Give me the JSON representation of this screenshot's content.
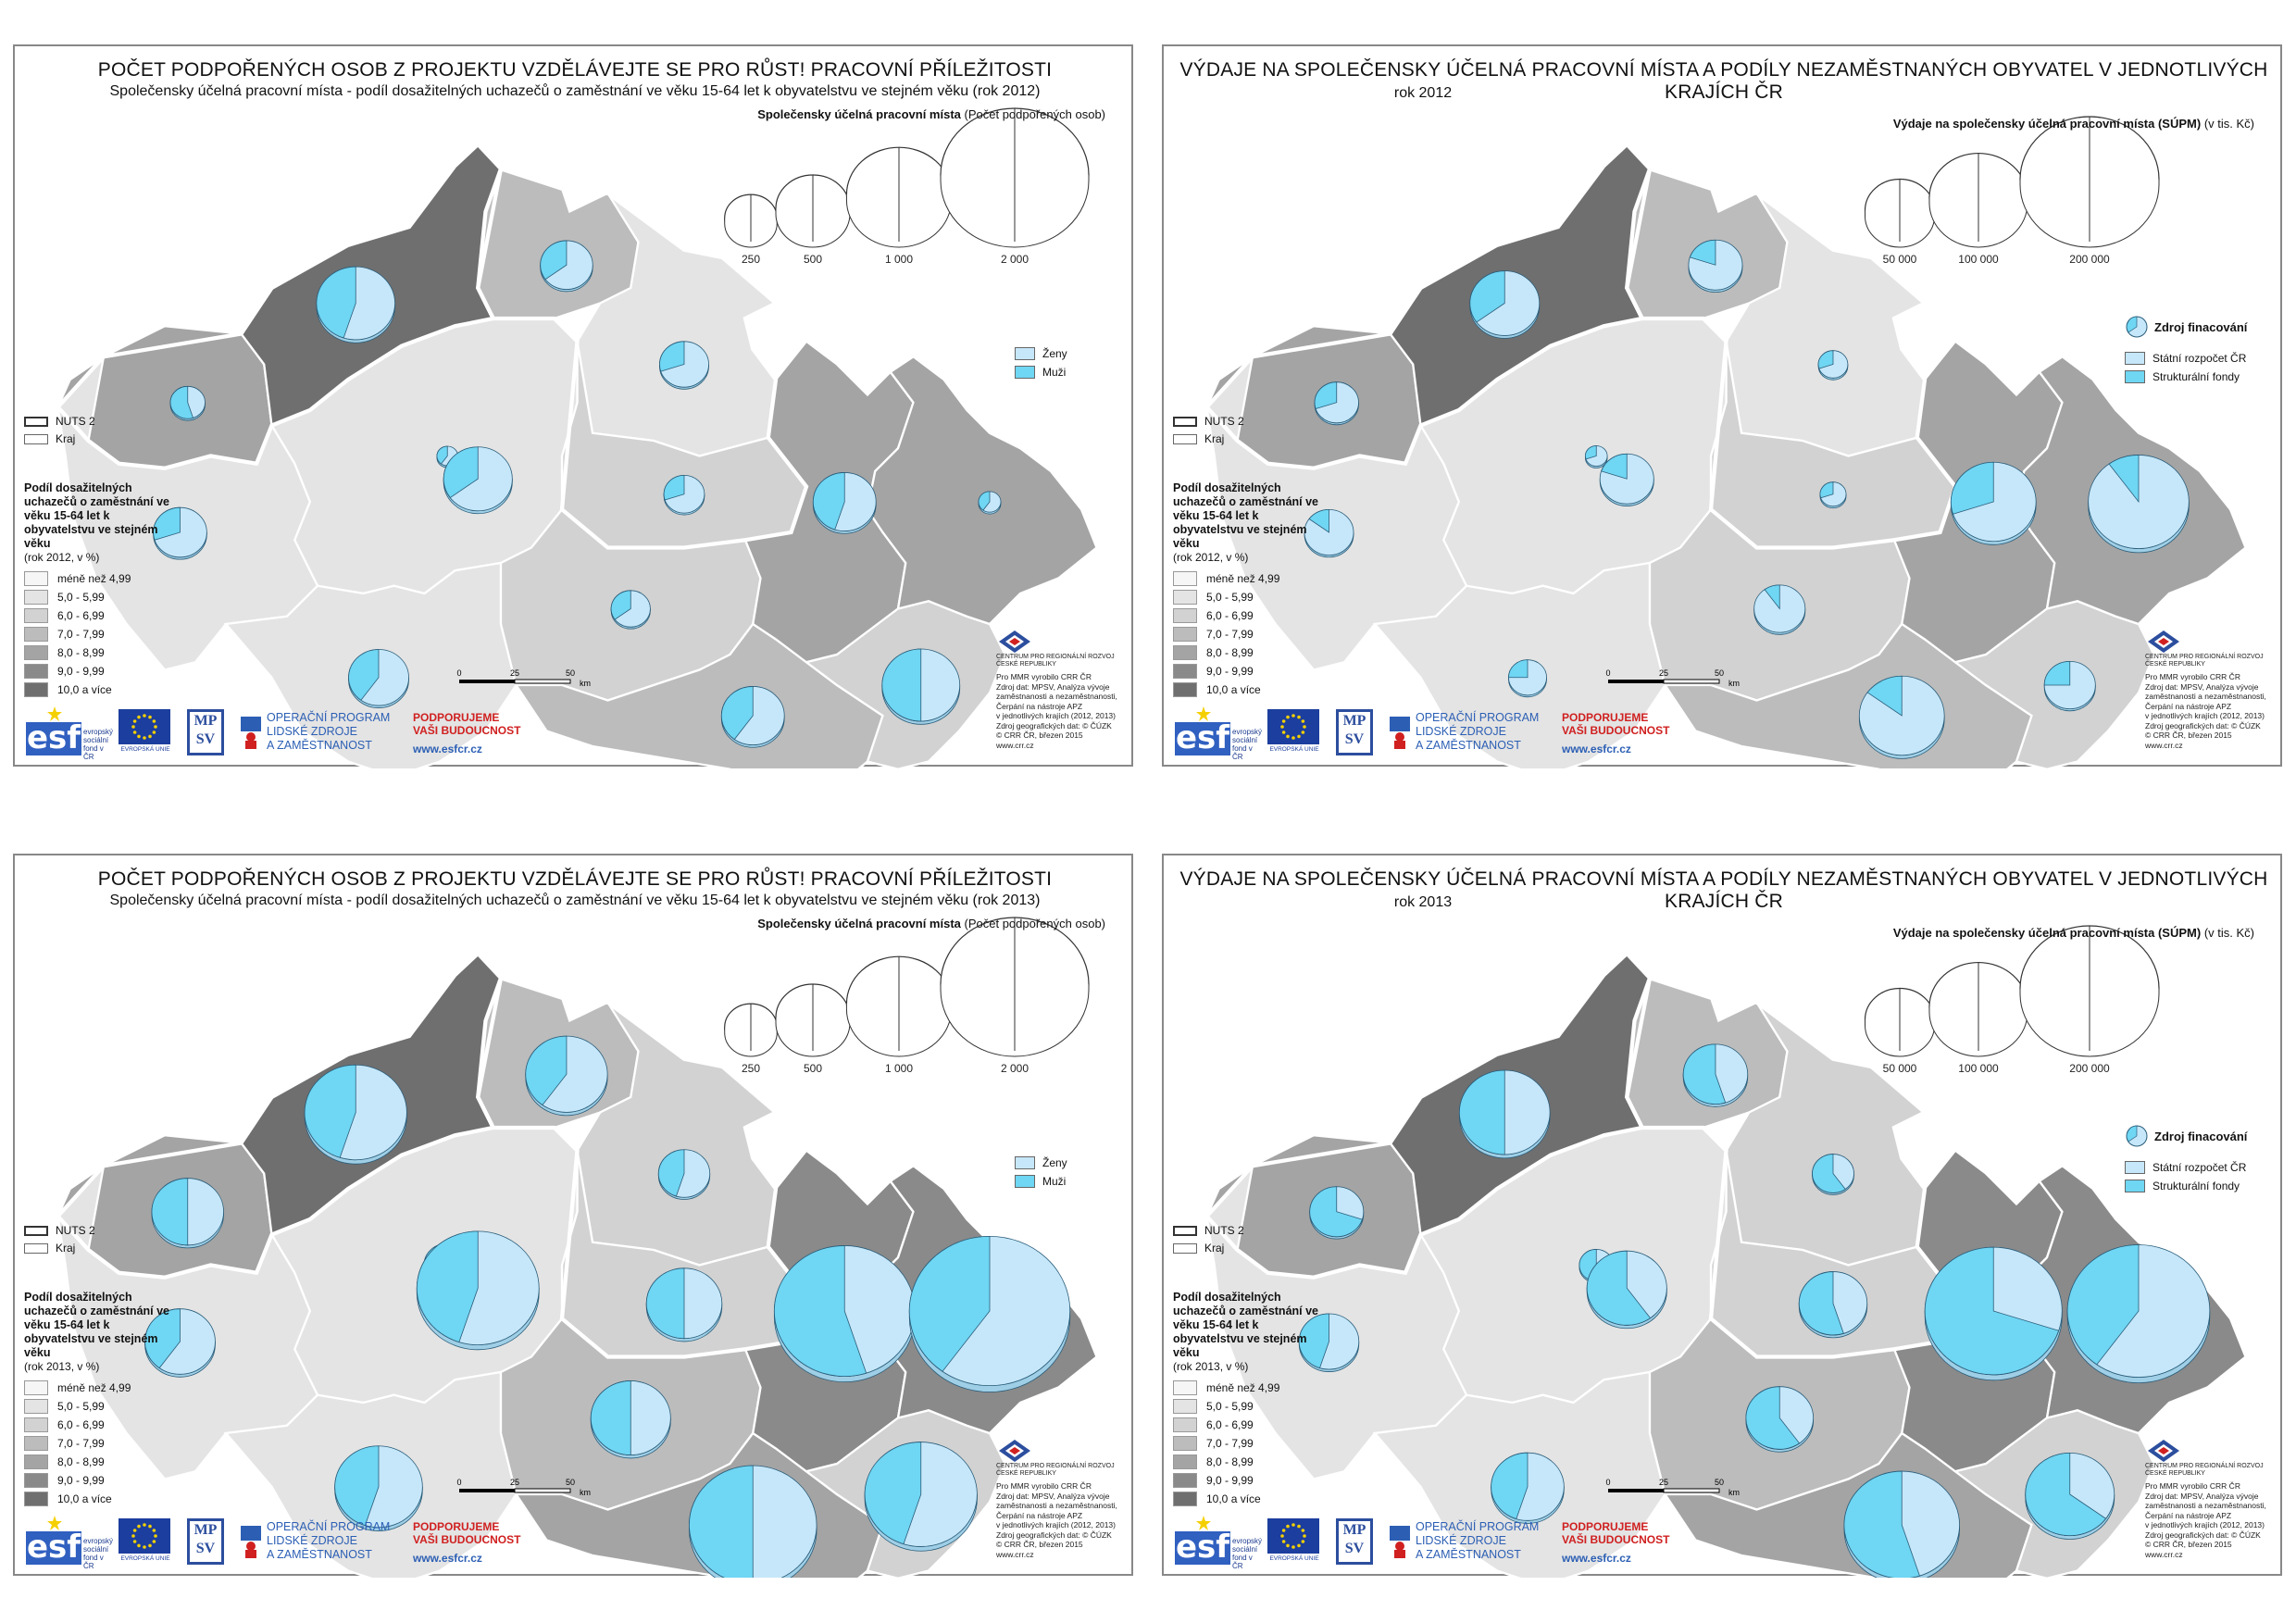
{
  "common": {
    "nuts_labels": [
      "NUTS 2",
      "Kraj"
    ],
    "choro_classes": [
      "méně než 4,99",
      "5,0 - 5,99",
      "6,0 - 6,99",
      "7,0 - 7,99",
      "8,0 - 8,99",
      "9,0 - 9,99",
      "10,0 a více"
    ],
    "choro_colors": [
      "#f6f6f6",
      "#e4e4e4",
      "#d2d2d2",
      "#bcbcbc",
      "#a4a4a4",
      "#8a8a8a",
      "#6f6f6f"
    ],
    "choro_title": "Podíl dosažitelných uchazečů o zaměstnání ve věku 15-64 let k obyvatelstvu ve stejném věku",
    "scale_ticks": [
      "0",
      "25",
      "50"
    ],
    "scale_unit": "km",
    "credits": {
      "crr_name": "CENTRUM PRO REGIONÁLNÍ ROZVOJ ČESKÉ REPUBLIKY",
      "lines": [
        "Pro MMR vyrobilo CRR ČR",
        "Zdroj dat: MPSV, Analýza vývoje",
        "zaměstnanosti a nezaměstnanosti,",
        "Čerpání na nástroje APZ",
        "v jednotlivých krajích (2012, 2013)",
        "Zdroj geografických dat: © ČÚZK",
        "© CRR ČR, březen 2015",
        "www.crr.cz"
      ]
    },
    "logos": {
      "esf_word": "esf",
      "esf_text": [
        "evropský",
        "sociální",
        "fond v ČR"
      ],
      "eu_text": "EVROPSKÁ UNIE",
      "mpsv": [
        "MP",
        "SV"
      ],
      "oppl": [
        "OPERAČNÍ PROGRAM",
        "LIDSKÉ ZDROJE",
        "A ZAMĚSTNANOST"
      ],
      "podpor": [
        "PODPORUJEME",
        "VAŠI BUDOUCNOST"
      ],
      "web": "www.esfcr.cz"
    },
    "colors": {
      "light": "#c6e7fa",
      "dark": "#6fd6f3",
      "outline": "#555555",
      "pie_stroke": "#2a5d7a"
    },
    "region_classes_2012": {
      "KV": 4,
      "UL": 6,
      "LI": 3,
      "KR": 1,
      "PA": 2,
      "PHA": 0,
      "STC": 1,
      "PL": 1,
      "JC": 1,
      "VY": 2,
      "JM": 3,
      "OL": 4,
      "ZL": 2,
      "MS": 4
    },
    "region_classes_2013": {
      "KV": 4,
      "UL": 6,
      "LI": 3,
      "KR": 2,
      "PA": 2,
      "PHA": 0,
      "STC": 1,
      "PL": 1,
      "JC": 1,
      "VY": 3,
      "JM": 4,
      "OL": 5,
      "ZL": 2,
      "MS": 5
    }
  },
  "panels": [
    {
      "title": "POČET PODPOŘENÝCH OSOB Z PROJEKTU VZDĚLÁVEJTE SE PRO RŮST! PRACOVNÍ PŘÍLEŽITOSTI",
      "subtitle": "Společensky účelná pracovní místa - podíl dosažitelných uchazečů o zaměstnání ve věku 15-64 let k obyvatelstvu ve stejném věku (rok 2012)",
      "legend_title": "Společensky účelná pracovní místa",
      "legend_unit": "(Počet podpořených osob)",
      "size_labels": [
        "250",
        "500",
        "1 000",
        "2 000"
      ],
      "series": [
        "Ženy",
        "Muži"
      ],
      "choro_year": "(rok 2012, v %)",
      "year": 2012,
      "pies": [
        {
          "region": "KV",
          "total": 110,
          "dark_share": 0.55
        },
        {
          "region": "UL",
          "total": 560,
          "dark_share": 0.45
        },
        {
          "region": "LI",
          "total": 250,
          "dark_share": 0.35
        },
        {
          "region": "KR",
          "total": 220,
          "dark_share": 0.3
        },
        {
          "region": "PA",
          "total": 150,
          "dark_share": 0.3
        },
        {
          "region": "PHA",
          "total": 40,
          "dark_share": 0.4
        },
        {
          "region": "STC",
          "total": 430,
          "dark_share": 0.35
        },
        {
          "region": "PL",
          "total": 260,
          "dark_share": 0.3
        },
        {
          "region": "JC",
          "total": 330,
          "dark_share": 0.4
        },
        {
          "region": "VY",
          "total": 140,
          "dark_share": 0.35
        },
        {
          "region": "JM",
          "total": 360,
          "dark_share": 0.4
        },
        {
          "region": "OL",
          "total": 360,
          "dark_share": 0.45
        },
        {
          "region": "ZL",
          "total": 550,
          "dark_share": 0.5
        },
        {
          "region": "MS",
          "total": 45,
          "dark_share": 0.4
        }
      ]
    },
    {
      "title": "VÝDAJE NA SPOLEČENSKY ÚČELNÁ PRACOVNÍ MÍSTA A PODÍLY NEZAMĚSTNANÝCH OBYVATEL V JEDNOTLIVÝCH KRAJÍCH ČR",
      "subtitle": "rok 2012",
      "legend_title": "Výdaje na společensky účelná pracovní místa (SÚPM)",
      "legend_unit": "(v tis. Kč)",
      "size_labels": [
        "50 000",
        "100 000",
        "200 000"
      ],
      "series_header": "Zdroj finacování",
      "series": [
        "Státní rozpočet ČR",
        "Strukturální fondy"
      ],
      "choro_year": "(rok 2012, v %)",
      "year": 2012,
      "pies": [
        {
          "region": "KV",
          "total": 20000,
          "dark_share": 0.3
        },
        {
          "region": "UL",
          "total": 50000,
          "dark_share": 0.35
        },
        {
          "region": "LI",
          "total": 30000,
          "dark_share": 0.2
        },
        {
          "region": "KR",
          "total": 9000,
          "dark_share": 0.3
        },
        {
          "region": "PA",
          "total": 7000,
          "dark_share": 0.3
        },
        {
          "region": "PHA",
          "total": 5000,
          "dark_share": 0.3
        },
        {
          "region": "STC",
          "total": 30000,
          "dark_share": 0.2
        },
        {
          "region": "PL",
          "total": 25000,
          "dark_share": 0.15
        },
        {
          "region": "JC",
          "total": 15000,
          "dark_share": 0.25
        },
        {
          "region": "VY",
          "total": 27000,
          "dark_share": 0.1
        },
        {
          "region": "JM",
          "total": 75000,
          "dark_share": 0.15
        },
        {
          "region": "OL",
          "total": 75000,
          "dark_share": 0.3
        },
        {
          "region": "ZL",
          "total": 27000,
          "dark_share": 0.25
        },
        {
          "region": "MS",
          "total": 105000,
          "dark_share": 0.1
        }
      ]
    },
    {
      "title": "POČET PODPOŘENÝCH OSOB Z PROJEKTU VZDĚLÁVEJTE SE PRO RŮST! PRACOVNÍ PŘÍLEŽITOSTI",
      "subtitle": "Společensky účelná pracovní místa - podíl dosažitelných uchazečů o zaměstnání ve věku 15-64 let k obyvatelstvu ve stejném věku (rok 2013)",
      "legend_title": "Společensky účelná pracovní místa",
      "legend_unit": "(Počet podpořených osob)",
      "size_labels": [
        "250",
        "500",
        "1 000",
        "2 000"
      ],
      "series": [
        "Ženy",
        "Muži"
      ],
      "choro_year": "(rok 2013, v %)",
      "year": 2013,
      "pies": [
        {
          "region": "KV",
          "total": 470,
          "dark_share": 0.5
        },
        {
          "region": "UL",
          "total": 950,
          "dark_share": 0.45
        },
        {
          "region": "LI",
          "total": 610,
          "dark_share": 0.4
        },
        {
          "region": "KR",
          "total": 240,
          "dark_share": 0.45
        },
        {
          "region": "PA",
          "total": 520,
          "dark_share": 0.5
        },
        {
          "region": "PHA",
          "total": 200,
          "dark_share": 0.3
        },
        {
          "region": "STC",
          "total": 1360,
          "dark_share": 0.45
        },
        {
          "region": "PL",
          "total": 450,
          "dark_share": 0.4
        },
        {
          "region": "JC",
          "total": 700,
          "dark_share": 0.45
        },
        {
          "region": "VY",
          "total": 580,
          "dark_share": 0.5
        },
        {
          "region": "JM",
          "total": 1480,
          "dark_share": 0.5
        },
        {
          "region": "OL",
          "total": 1800,
          "dark_share": 0.55
        },
        {
          "region": "ZL",
          "total": 1150,
          "dark_share": 0.45
        },
        {
          "region": "MS",
          "total": 2350,
          "dark_share": 0.4
        }
      ]
    },
    {
      "title": "VÝDAJE NA SPOLEČENSKY ÚČELNÁ PRACOVNÍ MÍSTA A PODÍLY NEZAMĚSTNANÝCH OBYVATEL V JEDNOTLIVÝCH KRAJÍCH ČR",
      "subtitle": "rok 2013",
      "legend_title": "Výdaje na společensky účelná pracovní místa (SÚPM)",
      "legend_unit": "(v tis. Kč)",
      "size_labels": [
        "50 000",
        "100 000",
        "200 000"
      ],
      "series_header": "Zdroj finacování",
      "series": [
        "Státní rozpočet ČR",
        "Strukturální fondy"
      ],
      "choro_year": "(rok 2013, v %)",
      "year": 2013,
      "pies": [
        {
          "region": "KV",
          "total": 30000,
          "dark_share": 0.7
        },
        {
          "region": "UL",
          "total": 85000,
          "dark_share": 0.5
        },
        {
          "region": "LI",
          "total": 43000,
          "dark_share": 0.55
        },
        {
          "region": "KR",
          "total": 18000,
          "dark_share": 0.6
        },
        {
          "region": "PA",
          "total": 48000,
          "dark_share": 0.55
        },
        {
          "region": "PHA",
          "total": 12000,
          "dark_share": 0.6
        },
        {
          "region": "STC",
          "total": 66000,
          "dark_share": 0.6
        },
        {
          "region": "PL",
          "total": 37000,
          "dark_share": 0.45
        },
        {
          "region": "JC",
          "total": 55000,
          "dark_share": 0.45
        },
        {
          "region": "VY",
          "total": 47000,
          "dark_share": 0.6
        },
        {
          "region": "JM",
          "total": 138000,
          "dark_share": 0.55
        },
        {
          "region": "OL",
          "total": 195000,
          "dark_share": 0.7
        },
        {
          "region": "ZL",
          "total": 82000,
          "dark_share": 0.65
        },
        {
          "region": "MS",
          "total": 210000,
          "dark_share": 0.4
        }
      ]
    }
  ]
}
